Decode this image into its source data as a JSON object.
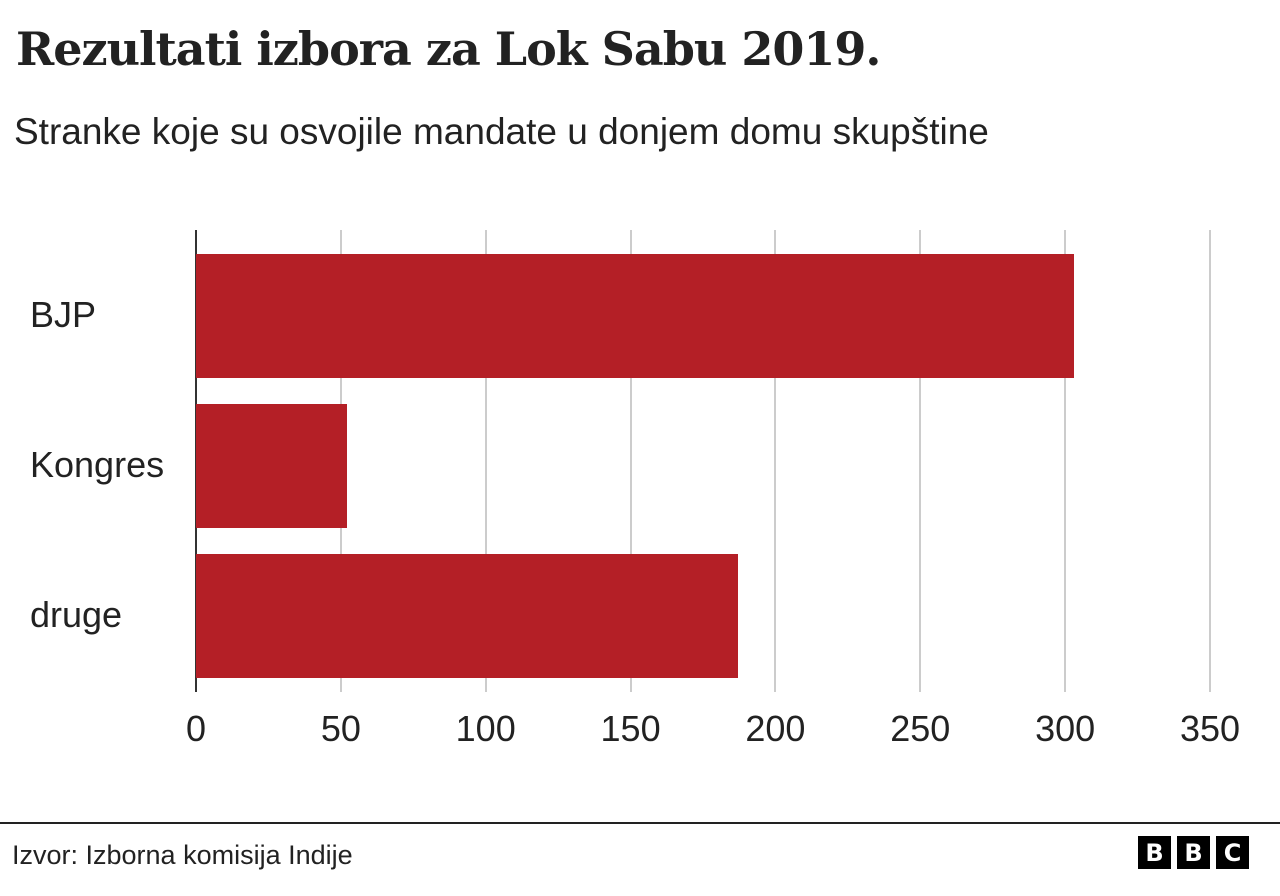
{
  "header": {
    "title": "Rezultati izbora za Lok Sabu 2019.",
    "subtitle": "Stranke koje su osvojile mandate u donjem domu skupštine"
  },
  "footer": {
    "source": "Izvor: Izborna komisija Indije",
    "logo_letters": [
      "B",
      "B",
      "C"
    ]
  },
  "colors": {
    "bar": "#b41f26",
    "grid": "#cccccc",
    "text": "#222222"
  },
  "chart_data": {
    "type": "bar",
    "orientation": "horizontal",
    "title": "Rezultati izbora za Lok Sabu 2019.",
    "subtitle": "Stranke koje su osvojile mandate u donjem domu skupštine",
    "categories": [
      "BJP",
      "Kongres",
      "druge"
    ],
    "values": [
      303,
      52,
      187
    ],
    "xlabel": "",
    "ylabel": "",
    "xlim": [
      0,
      350
    ],
    "xticks": [
      "0",
      "50",
      "100",
      "150",
      "200",
      "250",
      "300",
      "350"
    ],
    "grid": true,
    "legend": null,
    "source": "Izvor: Izborna komisija Indije"
  }
}
